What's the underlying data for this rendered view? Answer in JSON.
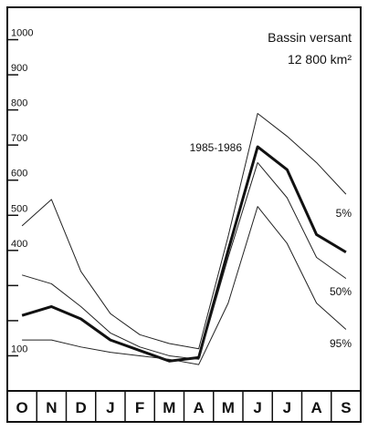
{
  "chart_data": {
    "type": "line",
    "title": "Bassin versant",
    "subtitle": "12 800 km²",
    "categories": [
      "O",
      "N",
      "D",
      "J",
      "F",
      "M",
      "A",
      "M",
      "J",
      "J",
      "A",
      "S"
    ],
    "series": [
      {
        "name": "5%",
        "color": "#222",
        "linewidth": 1,
        "values": [
          470,
          545,
          340,
          220,
          160,
          135,
          120,
          440,
          790,
          725,
          650,
          560
        ]
      },
      {
        "name": "1985-1986",
        "color": "#111",
        "linewidth": 3,
        "values": [
          215,
          240,
          205,
          145,
          115,
          85,
          95,
          400,
          695,
          630,
          445,
          395
        ]
      },
      {
        "name": "50%",
        "color": "#222",
        "linewidth": 1,
        "values": [
          330,
          305,
          240,
          165,
          125,
          100,
          90,
          380,
          650,
          550,
          380,
          320
        ]
      },
      {
        "name": "95%",
        "color": "#222",
        "linewidth": 1,
        "values": [
          145,
          145,
          125,
          110,
          100,
          90,
          75,
          250,
          525,
          420,
          250,
          175
        ]
      }
    ],
    "ylim": [
      0,
      1100
    ],
    "yticks": [
      {
        "value": 100,
        "label": "100"
      },
      {
        "value": 200,
        "label": null
      },
      {
        "value": 300,
        "label": null
      },
      {
        "value": 400,
        "label": "400"
      },
      {
        "value": 500,
        "label": "500"
      },
      {
        "value": 600,
        "label": "600"
      },
      {
        "value": 700,
        "label": "700"
      },
      {
        "value": 800,
        "label": "800"
      },
      {
        "value": 900,
        "label": "900"
      },
      {
        "value": 1000,
        "label": "1000"
      }
    ],
    "grid": false
  }
}
